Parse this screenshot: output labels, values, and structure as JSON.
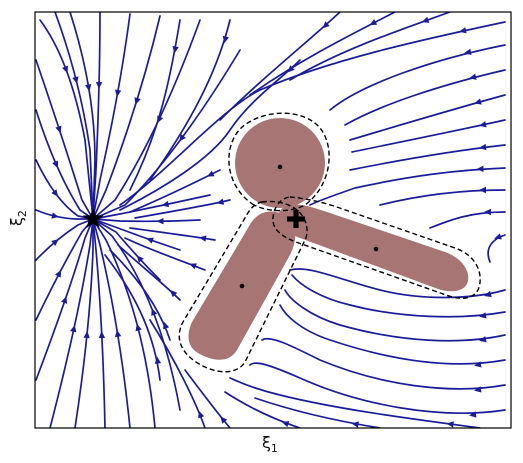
{
  "figure": {
    "xlabel": {
      "symbol": "ξ",
      "subscript": "1"
    },
    "ylabel": {
      "symbol": "ξ",
      "subscript": "2"
    }
  },
  "colors": {
    "streamline": "#1c1c9a",
    "obstacle_fill": "#a87575",
    "boundary": "#000000",
    "frame": "#000000"
  },
  "markers": {
    "goal": "star-icon",
    "saddle": "plus-icon",
    "centers": "center-dot"
  }
}
